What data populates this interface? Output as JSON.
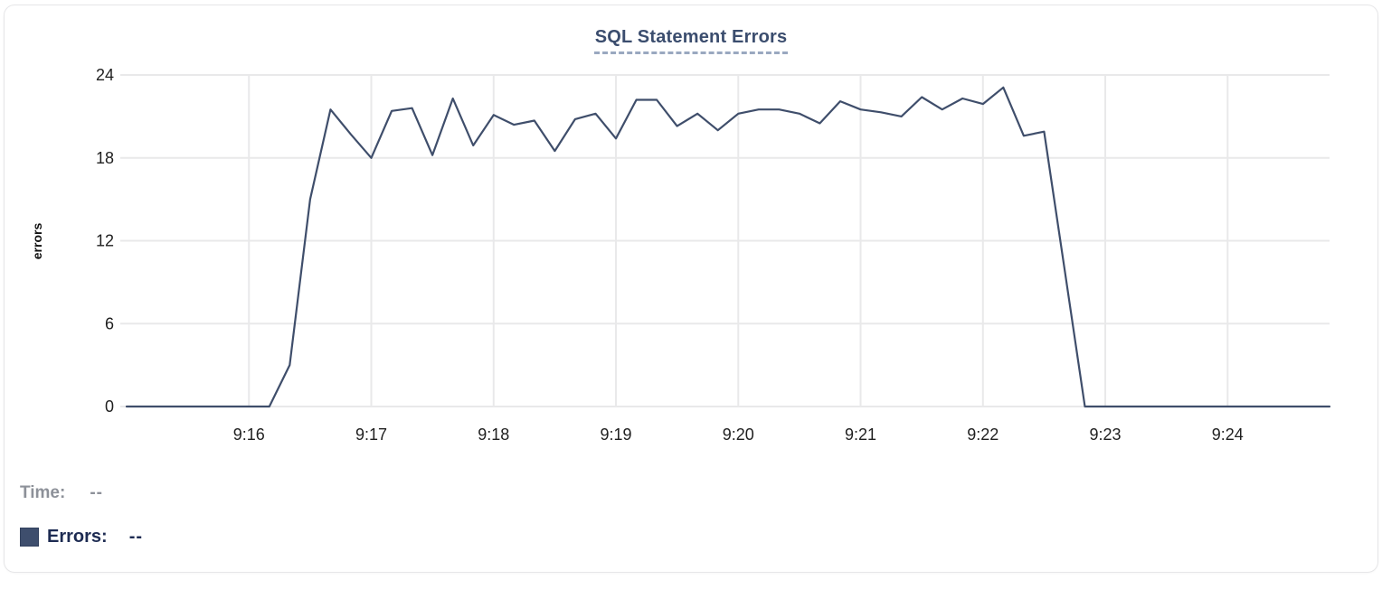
{
  "colors": {
    "line": "#3f4e6b",
    "grid": "#e9e9ea",
    "tick_text": "#1f1f1f",
    "title_text": "#3b4d6e",
    "title_dash": "#9aa8c0",
    "legend_time_text": "#8d9199",
    "legend_errors_text": "#1d2b52",
    "swatch_fill": "#3e4e6d",
    "card_border": "#e6e6e8"
  },
  "legend": {
    "time_label": "Time:",
    "time_value": "--",
    "errors_label": "Errors:",
    "errors_value": "--"
  },
  "chart_data": {
    "type": "line",
    "title": "SQL Statement Errors",
    "xlabel": "",
    "ylabel": "errors",
    "ylim": [
      0,
      24
    ],
    "y_ticks": [
      0,
      6,
      12,
      18,
      24
    ],
    "x_tick_labels": [
      "9:16",
      "9:17",
      "9:18",
      "9:19",
      "9:20",
      "9:21",
      "9:22",
      "9:23",
      "9:24"
    ],
    "x_tick_seconds": [
      60,
      120,
      180,
      240,
      300,
      360,
      420,
      480,
      540
    ],
    "x_domain_seconds": [
      0,
      590
    ],
    "time_start": "9:15:00",
    "time_end": "9:24:50",
    "interval_seconds": 10,
    "grid": true,
    "legend_position": "bottom-left",
    "series": [
      {
        "name": "Errors",
        "color": "#3f4e6b",
        "times": [
          "9:15:00",
          "9:15:10",
          "9:15:20",
          "9:15:30",
          "9:15:40",
          "9:15:50",
          "9:16:00",
          "9:16:10",
          "9:16:20",
          "9:16:30",
          "9:16:40",
          "9:16:50",
          "9:17:00",
          "9:17:10",
          "9:17:20",
          "9:17:30",
          "9:17:40",
          "9:17:50",
          "9:18:00",
          "9:18:10",
          "9:18:20",
          "9:18:30",
          "9:18:40",
          "9:18:50",
          "9:19:00",
          "9:19:10",
          "9:19:20",
          "9:19:30",
          "9:19:40",
          "9:19:50",
          "9:20:00",
          "9:20:10",
          "9:20:20",
          "9:20:30",
          "9:20:40",
          "9:20:50",
          "9:21:00",
          "9:21:10",
          "9:21:20",
          "9:21:30",
          "9:21:40",
          "9:21:50",
          "9:22:00",
          "9:22:10",
          "9:22:20",
          "9:22:30",
          "9:22:40",
          "9:22:50",
          "9:23:00",
          "9:23:10",
          "9:23:20",
          "9:23:30",
          "9:23:40",
          "9:23:50",
          "9:24:00",
          "9:24:10",
          "9:24:20",
          "9:24:30",
          "9:24:40",
          "9:24:50"
        ],
        "values": [
          0,
          0,
          0,
          0,
          0,
          0,
          0,
          0,
          3,
          15,
          21.5,
          19.7,
          18,
          21.4,
          21.6,
          18.2,
          22.3,
          18.9,
          21.1,
          20.4,
          20.7,
          18.5,
          20.8,
          21.2,
          19.4,
          22.2,
          22.2,
          20.3,
          21.2,
          20,
          21.2,
          21.5,
          21.5,
          21.2,
          20.5,
          22.1,
          21.5,
          21.3,
          21,
          22.4,
          21.5,
          22.3,
          21.9,
          23.1,
          19.6,
          19.9,
          10,
          0,
          0,
          0,
          0,
          0,
          0,
          0,
          0,
          0,
          0,
          0,
          0,
          0
        ]
      }
    ]
  }
}
